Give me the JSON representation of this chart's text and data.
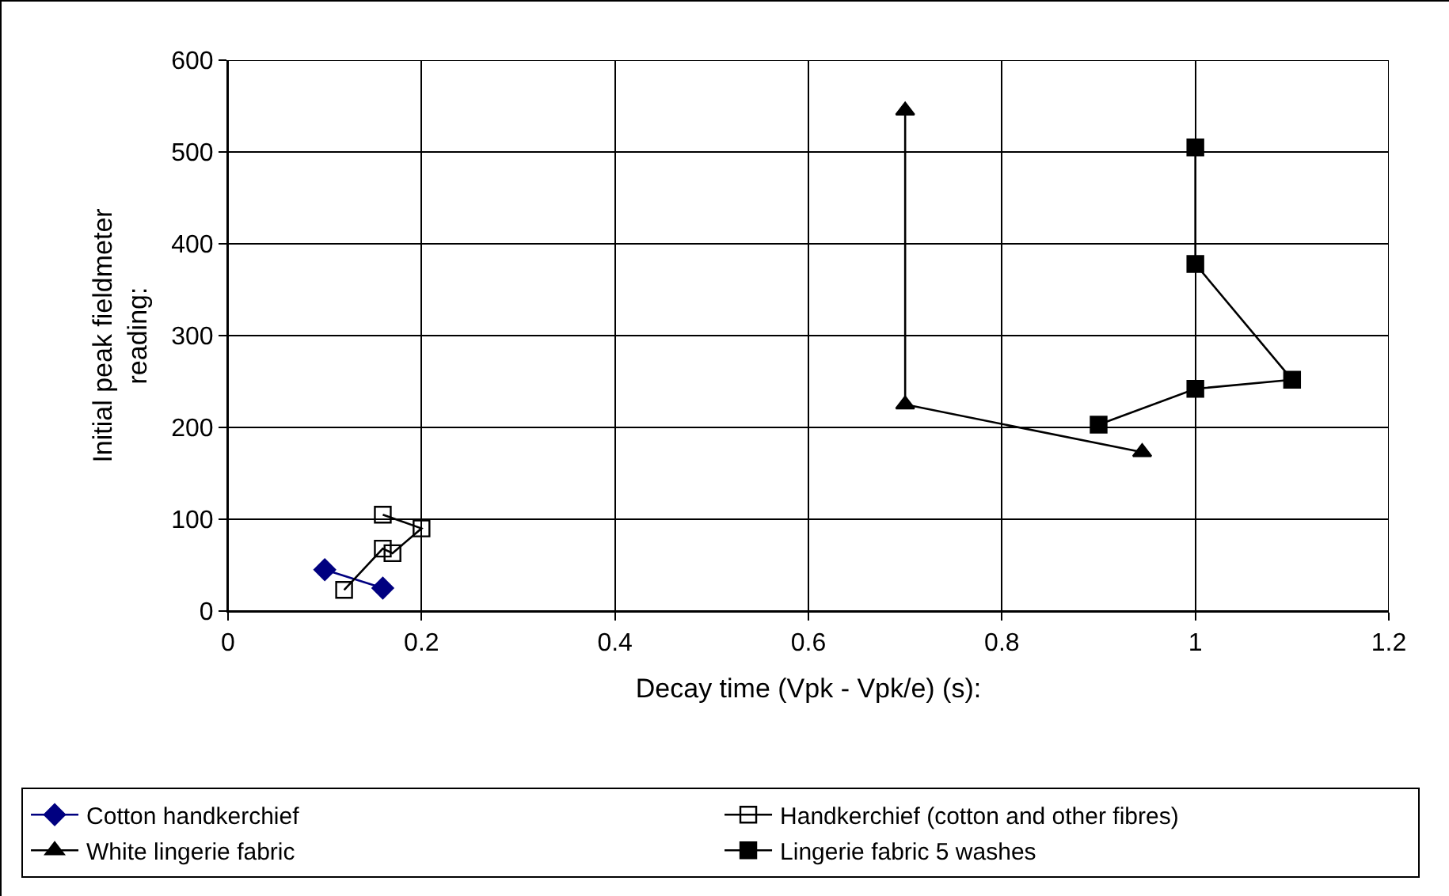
{
  "chart_data": {
    "type": "line",
    "xlabel": "Decay time (Vpk - Vpk/e) (s):",
    "ylabel": "Initial peak fieldmeter reading:",
    "xlim": [
      0,
      1.2
    ],
    "xticks": [
      0,
      0.2,
      0.4,
      0.6,
      0.8,
      1,
      1.2
    ],
    "ylim": [
      0,
      600
    ],
    "yticks": [
      0,
      100,
      200,
      300,
      400,
      500,
      600
    ],
    "grid": true,
    "legend": "bottom",
    "line_style": "solid",
    "series": [
      {
        "name": "Cotton handkerchief",
        "color": "#000080",
        "marker": "diamond",
        "x": [
          0.1,
          0.16
        ],
        "values": [
          45,
          25
        ]
      },
      {
        "name": "Handkerchief (cotton and other fibres)",
        "color": "#000000",
        "marker": "square-open",
        "x": [
          0.16,
          0.2,
          0.17,
          0.16,
          0.12
        ],
        "values": [
          105,
          90,
          63,
          68,
          23
        ]
      },
      {
        "name": "White lingerie fabric",
        "color": "#000000",
        "marker": "triangle",
        "x": [
          0.7,
          0.7,
          0.945
        ],
        "values": [
          545,
          225,
          173
        ]
      },
      {
        "name": "Lingerie fabric 5 washes",
        "color": "#000000",
        "marker": "square",
        "x": [
          1,
          1,
          1.1,
          1,
          0.9
        ],
        "values": [
          505,
          378,
          252,
          242,
          203
        ]
      }
    ]
  }
}
